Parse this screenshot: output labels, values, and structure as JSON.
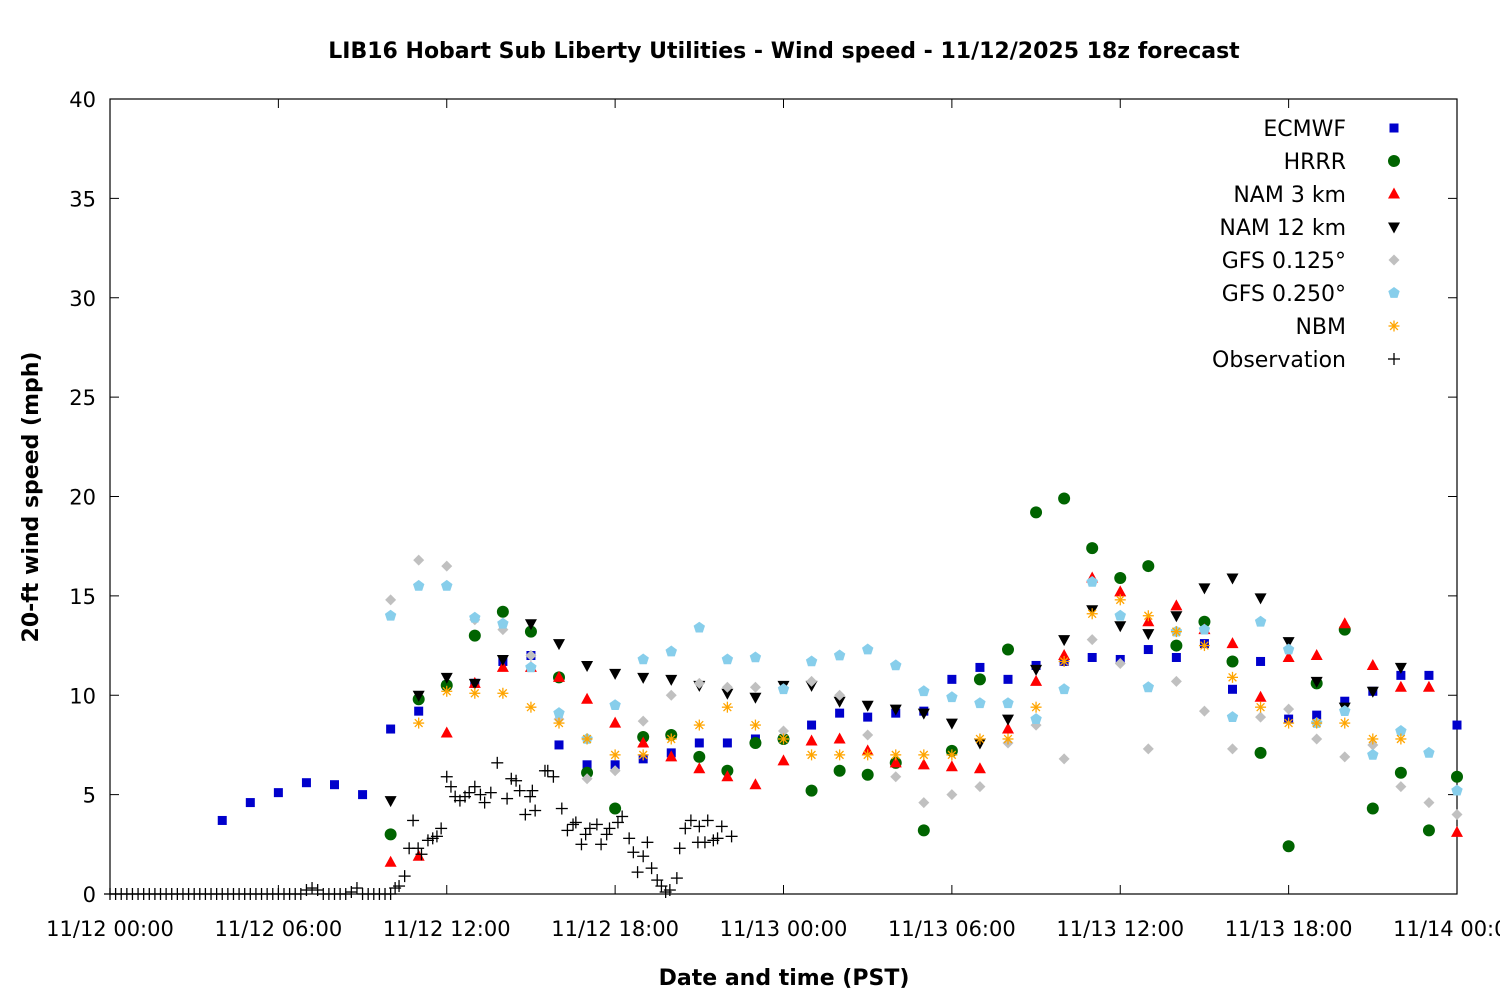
{
  "chart_data": {
    "type": "scatter",
    "title": "LIB16 Hobart Sub Liberty Utilities - Wind speed - 11/12/2025 18z forecast",
    "xlabel": "Date and time (PST)",
    "ylabel": "20-ft wind speed (mph)",
    "x_units": "hours since 11/12 00:00 PST",
    "xlim": [
      0,
      48
    ],
    "ylim": [
      0,
      40
    ],
    "x_ticks": [
      {
        "value": 0,
        "label": "11/12 00:00"
      },
      {
        "value": 6,
        "label": "11/12 06:00"
      },
      {
        "value": 12,
        "label": "11/12 12:00"
      },
      {
        "value": 18,
        "label": "11/12 18:00"
      },
      {
        "value": 24,
        "label": "11/13 00:00"
      },
      {
        "value": 30,
        "label": "11/13 06:00"
      },
      {
        "value": 36,
        "label": "11/13 12:00"
      },
      {
        "value": 42,
        "label": "11/13 18:00"
      },
      {
        "value": 48,
        "label": "11/14 00:00"
      }
    ],
    "y_ticks": [
      {
        "value": 0,
        "label": "0"
      },
      {
        "value": 5,
        "label": "5"
      },
      {
        "value": 10,
        "label": "10"
      },
      {
        "value": 15,
        "label": "15"
      },
      {
        "value": 20,
        "label": "20"
      },
      {
        "value": 25,
        "label": "25"
      },
      {
        "value": 30,
        "label": "30"
      },
      {
        "value": 35,
        "label": "35"
      },
      {
        "value": 40,
        "label": "40"
      }
    ],
    "grid": false,
    "legend_position": "top-right",
    "series": [
      {
        "name": "ECMWF",
        "marker": "square",
        "color": "#0000cc",
        "hour_start": 4,
        "hour_step": 1,
        "values": [
          3.7,
          4.6,
          5.1,
          5.6,
          5.5,
          5.0,
          8.3,
          9.2,
          10.5,
          10.6,
          11.7,
          12.0,
          7.5,
          6.5,
          6.5,
          6.8,
          7.1,
          7.6,
          7.6,
          7.8,
          7.8,
          8.5,
          9.1,
          8.9,
          9.1,
          9.2,
          10.8,
          11.4,
          10.8,
          11.5,
          11.7,
          11.9,
          11.8,
          12.3,
          11.9,
          12.6,
          10.3,
          11.7,
          8.8,
          9.0,
          9.7,
          10.2,
          11.0,
          11.0,
          8.5
        ]
      },
      {
        "name": "HRRR",
        "marker": "circle",
        "color": "#006400",
        "hour_start": 10,
        "hour_step": 1,
        "values": [
          3.0,
          9.8,
          10.5,
          13.0,
          14.2,
          13.2,
          10.9,
          6.1,
          4.3,
          7.9,
          8.0,
          6.9,
          6.2,
          7.6,
          7.8,
          5.2,
          6.2,
          6.0,
          6.6,
          3.2,
          7.2,
          10.8,
          12.3,
          19.2,
          19.9,
          17.4,
          15.9,
          16.5,
          12.5,
          13.7,
          11.7,
          7.1,
          2.4,
          10.6,
          13.3,
          4.3,
          6.1,
          3.2,
          5.9
        ]
      },
      {
        "name": "NAM 3 km",
        "marker": "triangle-up",
        "color": "#ff0000",
        "hour_start": 10,
        "hour_step": 1,
        "values": [
          1.6,
          1.9,
          8.1,
          10.6,
          11.4,
          11.4,
          10.9,
          9.8,
          8.6,
          7.6,
          6.9,
          6.3,
          5.9,
          5.5,
          6.7,
          7.7,
          7.8,
          7.2,
          6.6,
          6.5,
          6.4,
          6.3,
          8.3,
          10.7,
          12.0,
          15.9,
          15.2,
          13.7,
          14.5,
          13.3,
          12.6,
          9.9,
          11.9,
          12.0,
          13.6,
          11.5,
          10.4,
          10.4,
          3.1
        ]
      },
      {
        "name": "NAM 12 km",
        "marker": "triangle-down",
        "color": "#000000",
        "hour_start": 10,
        "hour_step": 1,
        "values": [
          4.7,
          10.0,
          10.9,
          10.6,
          11.8,
          13.6,
          12.6,
          11.5,
          11.1,
          10.9,
          10.8,
          10.5,
          10.1,
          9.9,
          10.5,
          10.5,
          9.7,
          9.5,
          9.3,
          9.1,
          8.6,
          7.6,
          8.8,
          11.3,
          12.8,
          14.3,
          13.5,
          13.1,
          14.0,
          15.4,
          15.9,
          14.9,
          12.7,
          10.7,
          9.4,
          10.2,
          11.4,
          null,
          null
        ]
      },
      {
        "name": "GFS 0.125°",
        "marker": "diamond",
        "color": "#c0c0c0",
        "hour_start": 10,
        "hour_step": 1,
        "values": [
          14.8,
          16.8,
          16.5,
          13.8,
          13.3,
          12.0,
          8.8,
          5.8,
          6.2,
          8.7,
          10.0,
          10.6,
          10.4,
          10.4,
          8.2,
          10.7,
          10.0,
          8.0,
          5.9,
          4.6,
          5.0,
          5.4,
          7.6,
          8.5,
          6.8,
          12.8,
          11.6,
          7.3,
          10.7,
          9.2,
          7.3,
          8.9,
          9.3,
          7.8,
          6.9,
          7.5,
          5.4,
          4.6,
          4.0
        ]
      },
      {
        "name": "GFS 0.250°",
        "marker": "pentagon",
        "color": "#87ceeb",
        "hour_start": 10,
        "hour_step": 1,
        "values": [
          14.0,
          15.5,
          15.5,
          13.9,
          13.6,
          11.4,
          9.1,
          7.8,
          9.5,
          11.8,
          12.2,
          13.4,
          11.8,
          11.9,
          10.3,
          11.7,
          12.0,
          12.3,
          11.5,
          10.2,
          9.9,
          9.6,
          9.6,
          8.8,
          10.3,
          15.7,
          14.0,
          10.4,
          13.2,
          13.3,
          8.9,
          13.7,
          12.3,
          8.6,
          9.2,
          7.0,
          8.2,
          7.1,
          5.2
        ]
      },
      {
        "name": "NBM",
        "marker": "asterisk",
        "color": "#ffa500",
        "hour_start": 10,
        "hour_step": 1,
        "values": [
          null,
          8.6,
          10.2,
          10.1,
          10.1,
          9.4,
          8.6,
          7.8,
          7.0,
          7.0,
          7.8,
          8.5,
          9.4,
          8.5,
          7.8,
          7.0,
          7.0,
          7.0,
          7.0,
          7.0,
          7.0,
          7.8,
          7.8,
          9.4,
          11.7,
          14.1,
          14.8,
          14.0,
          13.2,
          12.5,
          10.9,
          9.4,
          8.6,
          8.6,
          8.6,
          7.8,
          7.8,
          null,
          null
        ]
      },
      {
        "name": "Observation",
        "marker": "plus",
        "color": "#000000",
        "points": [
          [
            0,
            0
          ],
          [
            0.2,
            0
          ],
          [
            0.4,
            0
          ],
          [
            0.6,
            0
          ],
          [
            0.8,
            0
          ],
          [
            1.0,
            0
          ],
          [
            1.2,
            0
          ],
          [
            1.4,
            0
          ],
          [
            1.6,
            0
          ],
          [
            1.8,
            0
          ],
          [
            2.0,
            0
          ],
          [
            2.2,
            0
          ],
          [
            2.4,
            0
          ],
          [
            2.6,
            0
          ],
          [
            2.8,
            0
          ],
          [
            3.0,
            0
          ],
          [
            3.2,
            0
          ],
          [
            3.4,
            0
          ],
          [
            3.6,
            0
          ],
          [
            3.8,
            0
          ],
          [
            4.0,
            0
          ],
          [
            4.2,
            0
          ],
          [
            4.4,
            0
          ],
          [
            4.6,
            0
          ],
          [
            4.8,
            0
          ],
          [
            5.0,
            0
          ],
          [
            5.2,
            0
          ],
          [
            5.4,
            0
          ],
          [
            5.6,
            0
          ],
          [
            5.8,
            0
          ],
          [
            6.0,
            0
          ],
          [
            6.2,
            0
          ],
          [
            6.4,
            0
          ],
          [
            6.6,
            0
          ],
          [
            6.8,
            0
          ],
          [
            7.0,
            0.2
          ],
          [
            7.2,
            0.3
          ],
          [
            7.4,
            0.2
          ],
          [
            7.6,
            0
          ],
          [
            7.8,
            0
          ],
          [
            8.0,
            0
          ],
          [
            8.2,
            0
          ],
          [
            8.4,
            0
          ],
          [
            8.6,
            0.1
          ],
          [
            8.8,
            0.3
          ],
          [
            9.0,
            0
          ],
          [
            9.2,
            0
          ],
          [
            9.4,
            0
          ],
          [
            9.6,
            0
          ],
          [
            9.8,
            0
          ],
          [
            10.0,
            0
          ],
          [
            10.16,
            0.3
          ],
          [
            10.3,
            0.4
          ],
          [
            10.5,
            0.9
          ],
          [
            10.66,
            2.3
          ],
          [
            10.8,
            3.7
          ],
          [
            10.98,
            2.3
          ],
          [
            11.1,
            2.0
          ],
          [
            11.33,
            2.7
          ],
          [
            11.5,
            2.8
          ],
          [
            11.65,
            2.9
          ],
          [
            11.8,
            3.3
          ],
          [
            12.0,
            5.9
          ],
          [
            12.15,
            5.4
          ],
          [
            12.3,
            4.9
          ],
          [
            12.47,
            4.7
          ],
          [
            12.65,
            4.9
          ],
          [
            12.8,
            5.1
          ],
          [
            13.0,
            5.4
          ],
          [
            13.2,
            5.0
          ],
          [
            13.35,
            4.6
          ],
          [
            13.57,
            5.1
          ],
          [
            13.8,
            6.6
          ],
          [
            14.15,
            4.8
          ],
          [
            14.3,
            5.8
          ],
          [
            14.47,
            5.7
          ],
          [
            14.6,
            5.2
          ],
          [
            14.8,
            4.0
          ],
          [
            14.97,
            4.9
          ],
          [
            15.05,
            5.2
          ],
          [
            15.15,
            4.2
          ],
          [
            15.5,
            6.2
          ],
          [
            15.6,
            6.2
          ],
          [
            15.8,
            5.9
          ],
          [
            16.1,
            4.3
          ],
          [
            16.3,
            3.2
          ],
          [
            16.5,
            3.5
          ],
          [
            16.6,
            3.6
          ],
          [
            16.8,
            2.5
          ],
          [
            16.95,
            3.0
          ],
          [
            17.1,
            3.3
          ],
          [
            17.35,
            3.5
          ],
          [
            17.5,
            2.5
          ],
          [
            17.7,
            3.0
          ],
          [
            17.8,
            3.3
          ],
          [
            18.1,
            3.6
          ],
          [
            18.25,
            3.9
          ],
          [
            18.5,
            2.8
          ],
          [
            18.65,
            2.1
          ],
          [
            18.8,
            1.1
          ],
          [
            19.0,
            1.9
          ],
          [
            19.15,
            2.6
          ],
          [
            19.3,
            1.3
          ],
          [
            19.5,
            0.7
          ],
          [
            19.65,
            0.4
          ],
          [
            19.8,
            0.1
          ],
          [
            19.95,
            0.2
          ],
          [
            20.2,
            0.8
          ],
          [
            20.3,
            2.3
          ],
          [
            20.5,
            3.3
          ],
          [
            20.7,
            3.7
          ],
          [
            20.95,
            2.6
          ],
          [
            21.0,
            3.4
          ],
          [
            21.2,
            2.6
          ],
          [
            21.3,
            3.7
          ],
          [
            21.5,
            2.7
          ],
          [
            21.65,
            2.8
          ],
          [
            21.8,
            3.4
          ],
          [
            22.15,
            2.9
          ]
        ]
      }
    ]
  }
}
